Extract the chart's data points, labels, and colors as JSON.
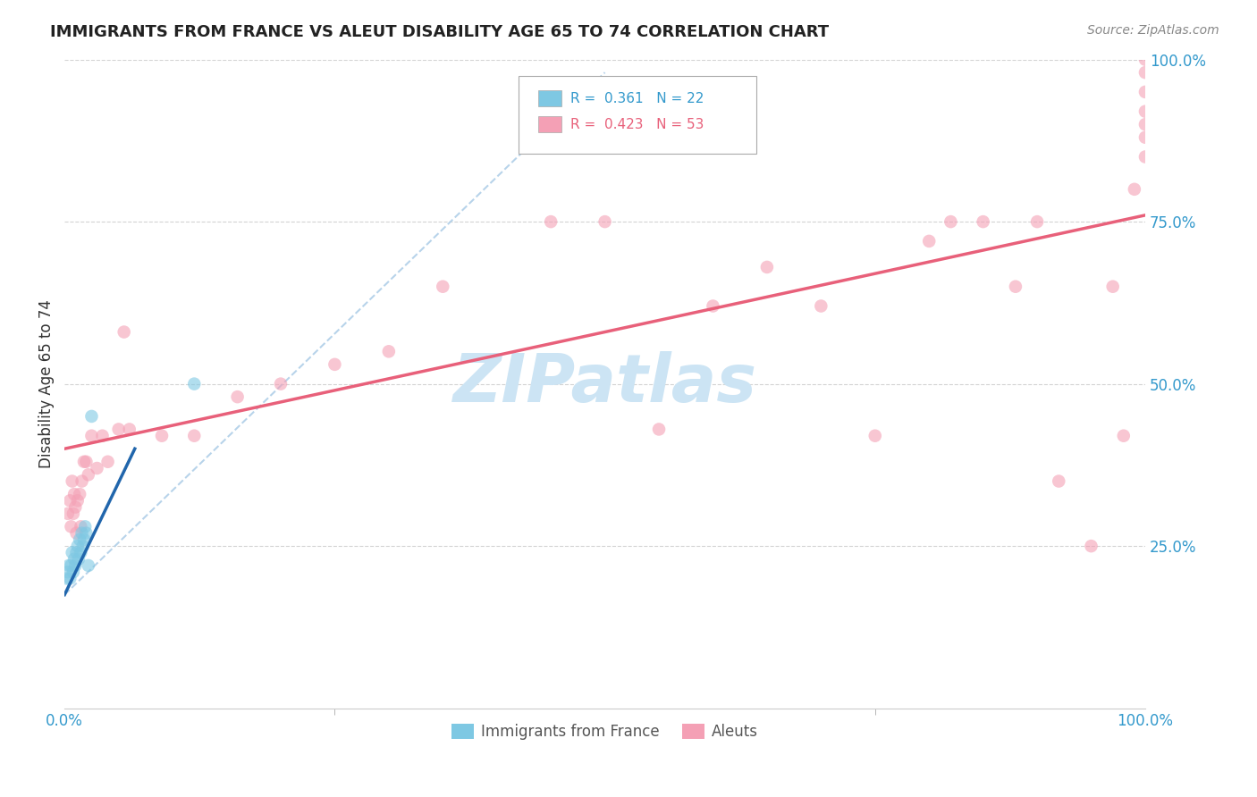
{
  "title": "IMMIGRANTS FROM FRANCE VS ALEUT DISABILITY AGE 65 TO 74 CORRELATION CHART",
  "source": "Source: ZipAtlas.com",
  "ylabel": "Disability Age 65 to 74",
  "xlim": [
    0.0,
    1.0
  ],
  "ylim": [
    0.0,
    1.0
  ],
  "y_tick_positions": [
    0.25,
    0.5,
    0.75,
    1.0
  ],
  "y_tick_labels": [
    "25.0%",
    "50.0%",
    "75.0%",
    "100.0%"
  ],
  "grid_color": "#c8c8c8",
  "background_color": "#ffffff",
  "blue_color": "#7ec8e3",
  "pink_color": "#f4a0b5",
  "blue_line_color": "#2166ac",
  "pink_line_color": "#e8607a",
  "blue_dashed_color": "#b0cfe8",
  "watermark_color": "#cce4f4",
  "france_x": [
    0.002,
    0.003,
    0.004,
    0.005,
    0.006,
    0.007,
    0.008,
    0.009,
    0.01,
    0.011,
    0.012,
    0.013,
    0.014,
    0.015,
    0.016,
    0.017,
    0.018,
    0.019,
    0.02,
    0.022,
    0.025,
    0.12
  ],
  "france_y": [
    0.2,
    0.21,
    0.22,
    0.2,
    0.22,
    0.24,
    0.21,
    0.23,
    0.22,
    0.24,
    0.25,
    0.23,
    0.26,
    0.24,
    0.27,
    0.25,
    0.26,
    0.28,
    0.27,
    0.22,
    0.45,
    0.5
  ],
  "aleut_x": [
    0.003,
    0.005,
    0.006,
    0.007,
    0.008,
    0.009,
    0.01,
    0.011,
    0.012,
    0.014,
    0.015,
    0.016,
    0.018,
    0.02,
    0.022,
    0.025,
    0.03,
    0.035,
    0.04,
    0.05,
    0.055,
    0.06,
    0.09,
    0.12,
    0.16,
    0.2,
    0.25,
    0.3,
    0.35,
    0.45,
    0.5,
    0.55,
    0.6,
    0.65,
    0.7,
    0.75,
    0.8,
    0.82,
    0.85,
    0.88,
    0.9,
    0.92,
    0.95,
    0.97,
    0.98,
    0.99,
    1.0,
    1.0,
    1.0,
    1.0,
    1.0,
    1.0,
    1.0
  ],
  "aleut_y": [
    0.3,
    0.32,
    0.28,
    0.35,
    0.3,
    0.33,
    0.31,
    0.27,
    0.32,
    0.33,
    0.28,
    0.35,
    0.38,
    0.38,
    0.36,
    0.42,
    0.37,
    0.42,
    0.38,
    0.43,
    0.58,
    0.43,
    0.42,
    0.42,
    0.48,
    0.5,
    0.53,
    0.55,
    0.65,
    0.75,
    0.75,
    0.43,
    0.62,
    0.68,
    0.62,
    0.42,
    0.72,
    0.75,
    0.75,
    0.65,
    0.75,
    0.35,
    0.25,
    0.65,
    0.42,
    0.8,
    0.85,
    0.88,
    0.9,
    0.92,
    0.95,
    0.98,
    1.0
  ],
  "pink_line_x0": 0.0,
  "pink_line_y0": 0.4,
  "pink_line_x1": 1.0,
  "pink_line_y1": 0.76,
  "blue_line_x0": 0.0,
  "blue_line_y0": 0.175,
  "blue_line_x1": 0.065,
  "blue_line_y1": 0.4,
  "dashed_line_x0": 0.0,
  "dashed_line_y0": 0.175,
  "dashed_line_x1": 0.5,
  "dashed_line_y1": 0.98,
  "marker_size": 110
}
